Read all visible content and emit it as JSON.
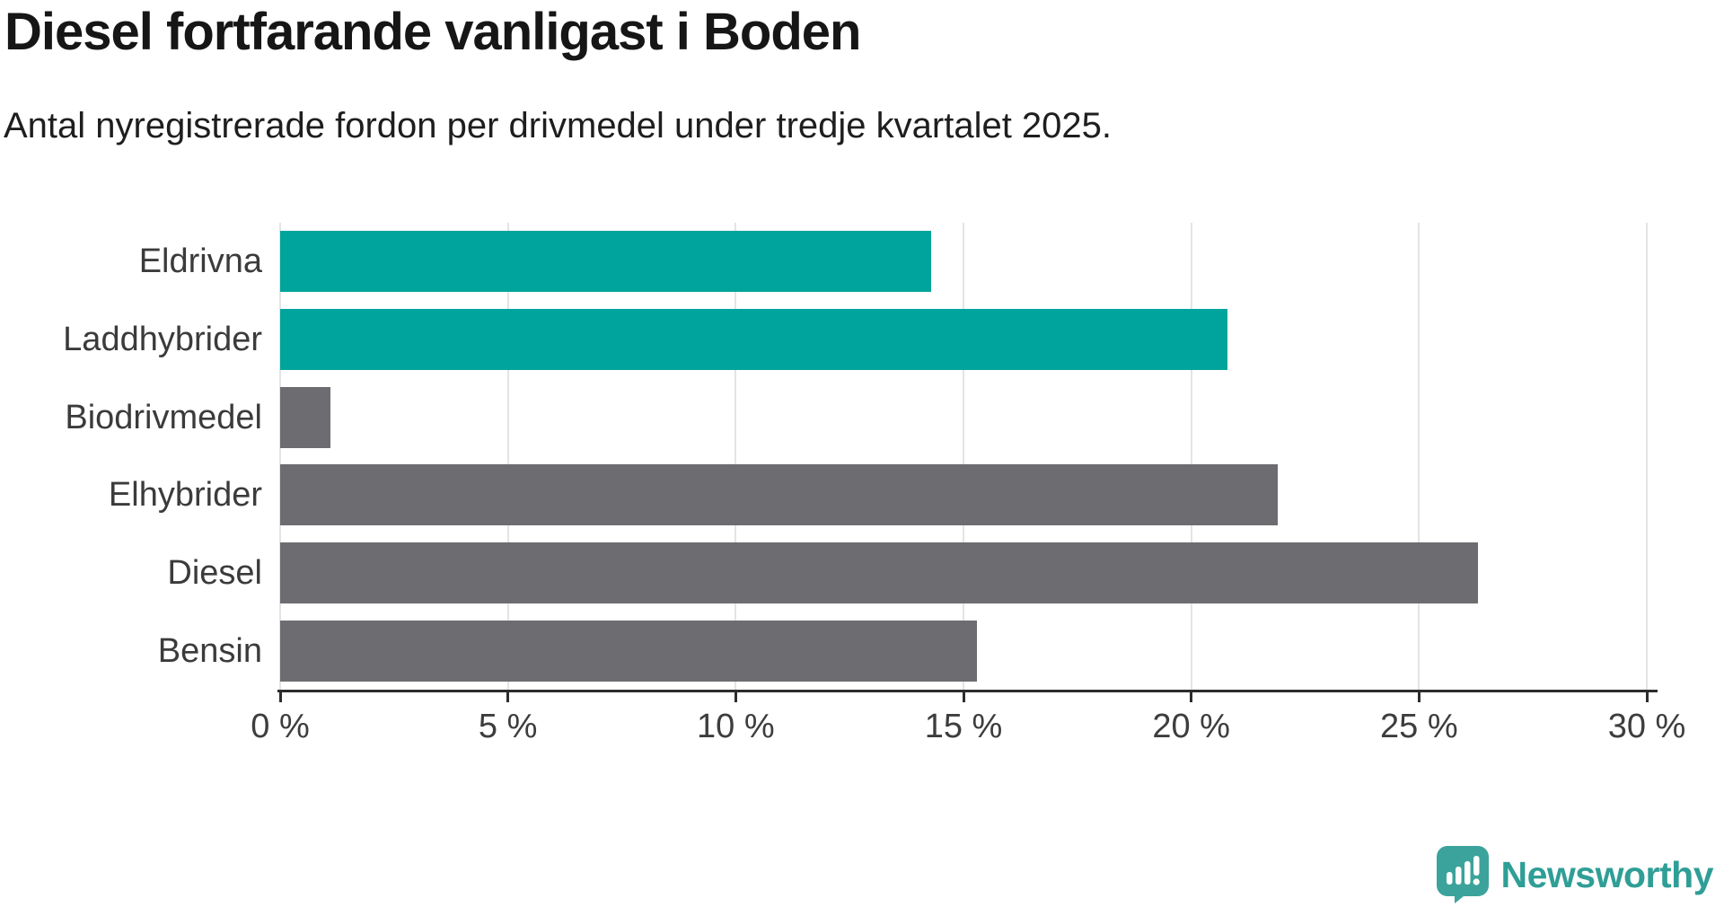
{
  "header": {
    "title": "Diesel fortfarande vanligast i Boden",
    "subtitle": "Antal nyregistrerade fordon per drivmedel under tredje kvartalet 2025."
  },
  "chart_data": {
    "type": "bar",
    "orientation": "horizontal",
    "title": "Diesel fortfarande vanligast i Boden",
    "subtitle": "Antal nyregistrerade fordon per drivmedel under tredje kvartalet 2025.",
    "categories": [
      "Eldrivna",
      "Laddhybrider",
      "Biodrivmedel",
      "Elhybrider",
      "Diesel",
      "Bensin"
    ],
    "values": [
      14.3,
      20.8,
      1.1,
      21.9,
      26.3,
      15.3
    ],
    "bar_colors": [
      "#00a49c",
      "#00a49c",
      "#6c6c71",
      "#6c6c71",
      "#6c6c71",
      "#6c6c71"
    ],
    "unit": "%",
    "xlim": [
      0,
      30
    ],
    "x_ticks": [
      0,
      5,
      10,
      15,
      20,
      25,
      30
    ],
    "x_tick_labels": [
      "0 %",
      "5 %",
      "10 %",
      "15 %",
      "20 %",
      "25 %",
      "30 %"
    ],
    "grid": "vertical",
    "legend": "none",
    "colors": {
      "highlight": "#00a49c",
      "default": "#6c6c71",
      "gridline": "#e4e4e4",
      "axis": "#2d2d2d"
    }
  },
  "footer": {
    "brand": "Newsworthy",
    "brand_color": "#2f9e96",
    "logo_icon": "newsworthy-speech-bubble-barchart-icon"
  }
}
